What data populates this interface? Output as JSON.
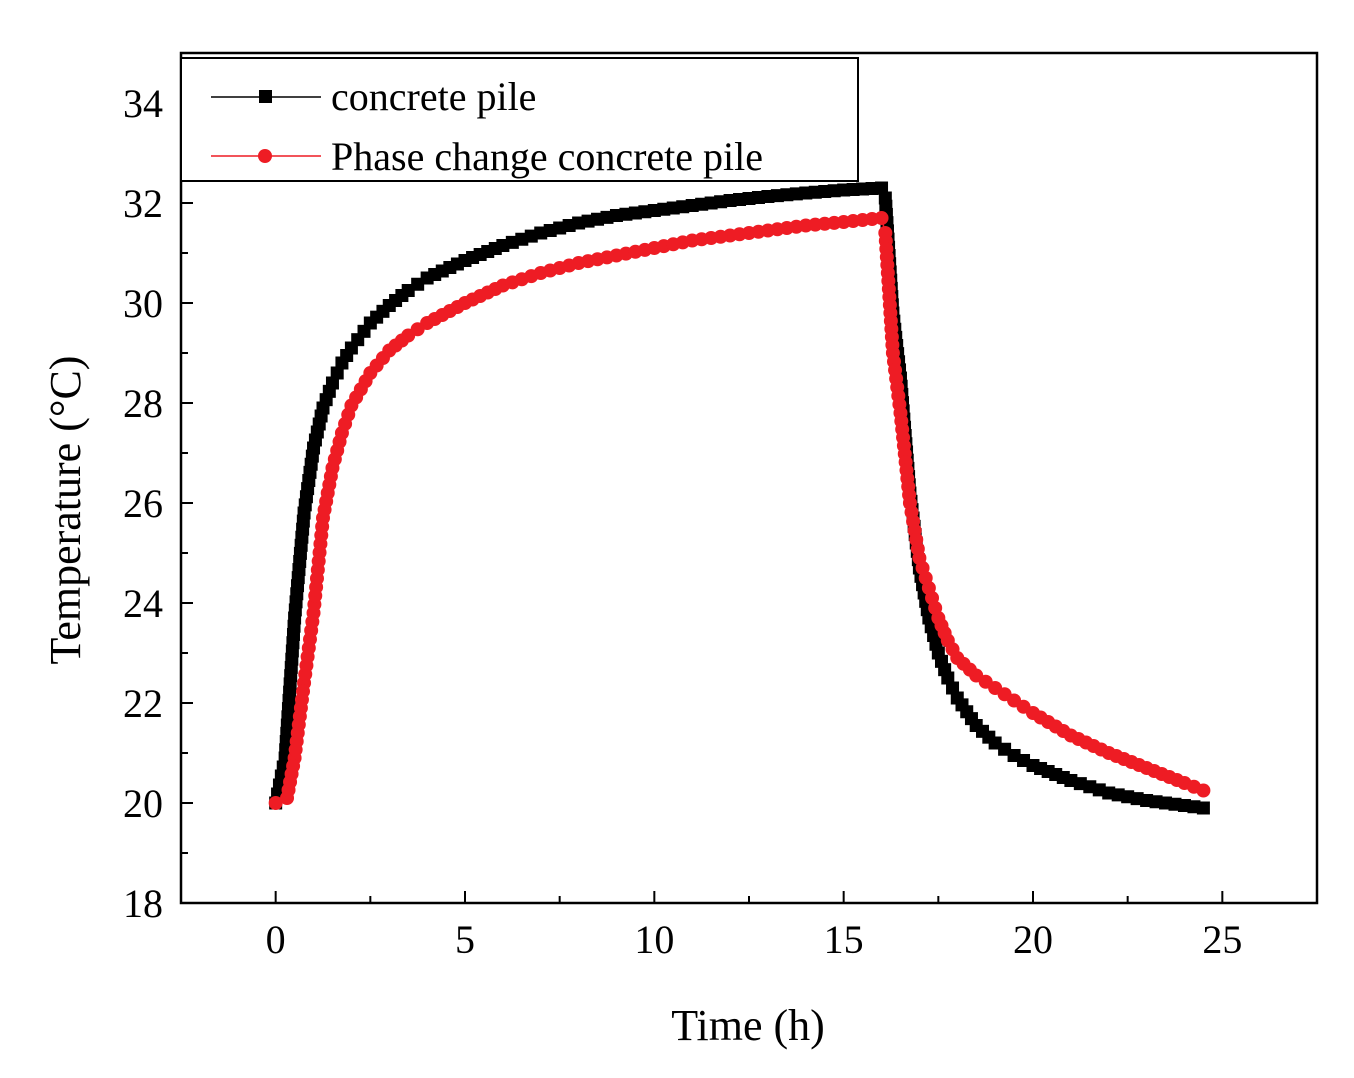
{
  "chart_data": {
    "type": "scatter",
    "xlabel": "Time (h)",
    "ylabel": "Temperature (°C)",
    "xlim": [
      -2.5,
      27.5
    ],
    "ylim": [
      18,
      35
    ],
    "xticks": [
      0,
      5,
      10,
      15,
      20,
      25
    ],
    "xtick_labels": [
      "0",
      "5",
      "10",
      "15",
      "20",
      "25"
    ],
    "yticks": [
      18,
      20,
      22,
      24,
      26,
      28,
      30,
      32,
      34
    ],
    "ytick_labels": [
      "18",
      "20",
      "22",
      "24",
      "26",
      "28",
      "30",
      "32",
      "34"
    ],
    "legend_position": "top-left",
    "series": [
      {
        "name": "concrete pile",
        "color": "#000000",
        "marker": "square",
        "x": [
          0,
          0.25,
          0.5,
          0.75,
          1,
          1.25,
          1.5,
          1.75,
          2,
          2.5,
          3,
          3.5,
          4,
          5,
          6,
          7,
          8,
          9,
          10,
          11,
          12,
          13,
          14,
          15,
          16,
          16.1,
          16.3,
          16.5,
          16.75,
          17,
          17.25,
          17.5,
          17.75,
          18,
          18.5,
          19,
          19.5,
          20,
          21,
          22,
          23,
          24,
          24.5
        ],
        "y": [
          20.0,
          20.9,
          23.7,
          25.8,
          27.1,
          27.9,
          28.4,
          28.8,
          29.1,
          29.6,
          29.95,
          30.25,
          30.5,
          30.85,
          31.15,
          31.4,
          31.6,
          31.75,
          31.85,
          31.95,
          32.05,
          32.13,
          32.2,
          32.26,
          32.3,
          32.1,
          29.8,
          28.5,
          26.2,
          24.7,
          23.7,
          23.0,
          22.5,
          22.1,
          21.55,
          21.2,
          20.95,
          20.75,
          20.45,
          20.2,
          20.05,
          19.95,
          19.9
        ]
      },
      {
        "name": "Phase change concrete pile",
        "color": "#ee1c24",
        "marker": "circle",
        "x": [
          0,
          0.3,
          0.5,
          0.75,
          1,
          1.25,
          1.5,
          1.75,
          2,
          2.5,
          3,
          3.5,
          4,
          5,
          6,
          7,
          8,
          9,
          10,
          11,
          12,
          13,
          14,
          15,
          16,
          16.1,
          16.3,
          16.5,
          16.75,
          17,
          17.25,
          17.5,
          17.75,
          18,
          18.5,
          19,
          19.5,
          20,
          21,
          22,
          23,
          24,
          24.5
        ],
        "y": [
          20.0,
          20.1,
          20.9,
          22.4,
          23.8,
          25.7,
          26.7,
          27.4,
          27.95,
          28.6,
          29.05,
          29.35,
          29.6,
          30.0,
          30.35,
          30.6,
          30.8,
          30.95,
          31.1,
          31.25,
          31.35,
          31.45,
          31.55,
          31.62,
          31.7,
          31.4,
          29.0,
          27.8,
          26.0,
          24.9,
          24.3,
          23.7,
          23.25,
          22.9,
          22.55,
          22.3,
          22.05,
          21.8,
          21.35,
          21.0,
          20.7,
          20.4,
          20.25
        ]
      }
    ]
  }
}
